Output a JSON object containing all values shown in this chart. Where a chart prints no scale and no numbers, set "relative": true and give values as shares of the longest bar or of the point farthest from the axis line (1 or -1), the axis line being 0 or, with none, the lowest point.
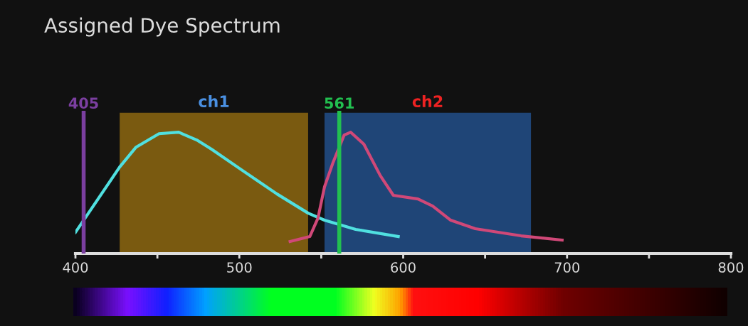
{
  "chart_data": {
    "type": "line",
    "title": "Assigned Dye Spectrum",
    "relative": true,
    "xlim": [
      400,
      800
    ],
    "xticks": [
      400,
      {
        "value": 450,
        "label": null
      },
      500,
      {
        "value": 550,
        "label": null
      },
      600,
      {
        "value": 650,
        "label": null
      },
      700,
      {
        "value": 750,
        "label": null
      },
      800
    ],
    "tick_labels": "x",
    "grid": false,
    "legend": false,
    "marker": "none",
    "line_style": "solid",
    "series": [
      {
        "color": "#50e0e0",
        "x": [
          400,
          427,
          437,
          451,
          463,
          474,
          483,
          502,
          523,
          542,
          552,
          571,
          597
        ],
        "values": [
          0.175,
          0.713,
          0.877,
          0.988,
          1,
          0.936,
          0.86,
          0.684,
          0.491,
          0.333,
          0.275,
          0.199,
          0.14
        ]
      },
      {
        "color": "#d04878",
        "x": [
          531,
          543,
          548,
          552,
          557,
          564,
          568,
          576,
          586,
          594,
          609,
          618,
          629,
          644,
          672,
          697
        ],
        "values": [
          0.099,
          0.14,
          0.292,
          0.55,
          0.743,
          0.977,
          1,
          0.901,
          0.643,
          0.48,
          0.45,
          0.392,
          0.275,
          0.205,
          0.146,
          0.111
        ]
      }
    ],
    "bands": [
      {
        "axis": "x",
        "from": 427,
        "to": 542,
        "label": "ch1",
        "color": "#7a5a10"
      },
      {
        "axis": "x",
        "from": 552,
        "to": 678,
        "label": "ch2",
        "color": "#1f4577"
      }
    ],
    "ref_lines": [
      {
        "axis": "x",
        "value": 405,
        "label": "405",
        "color": "#7b3fa0"
      },
      {
        "axis": "x",
        "value": 561,
        "label": "561",
        "color": "#22c050"
      }
    ]
  }
}
